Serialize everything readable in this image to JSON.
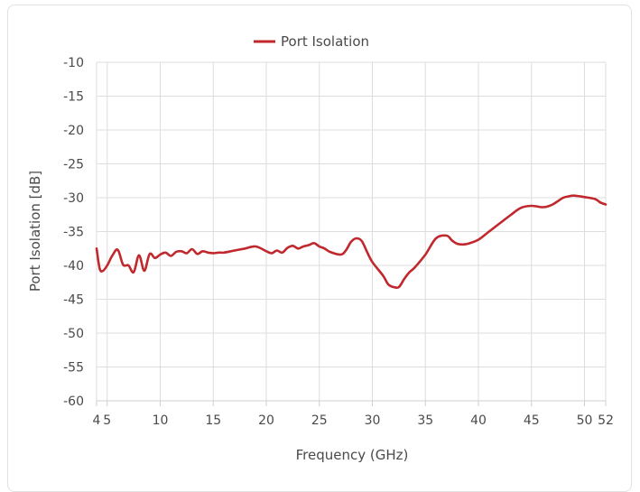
{
  "chart_data": {
    "type": "line",
    "title": "",
    "xlabel": "Frequency (GHz)",
    "ylabel": "Port Isolation [dB]",
    "xlim": [
      4,
      52
    ],
    "ylim": [
      -60,
      -10
    ],
    "grid": true,
    "legend_position": "top",
    "x_ticks": [
      4,
      5,
      10,
      15,
      20,
      25,
      30,
      35,
      40,
      45,
      50,
      52
    ],
    "x_tick_labels": [
      "4",
      "5",
      "10",
      "15",
      "20",
      "25",
      "30",
      "35",
      "40",
      "45",
      "50",
      "52"
    ],
    "y_ticks": [
      -10,
      -15,
      -20,
      -25,
      -30,
      -35,
      -40,
      -45,
      -50,
      -55,
      -60
    ],
    "y_tick_labels": [
      "-10",
      "-15",
      "-20",
      "-25",
      "-30",
      "-35",
      "-40",
      "-45",
      "-50",
      "-55",
      "-60"
    ],
    "series": [
      {
        "name": "Port Isolation",
        "color": "#c0282d",
        "x": [
          4.0,
          4.3,
          4.6,
          5.0,
          5.5,
          6.0,
          6.5,
          7.0,
          7.5,
          8.0,
          8.5,
          9.0,
          9.5,
          10.0,
          10.5,
          11.0,
          11.5,
          12.0,
          12.5,
          13.0,
          13.5,
          14.0,
          14.5,
          15.0,
          15.5,
          16.0,
          17.0,
          18.0,
          19.0,
          20.0,
          20.5,
          21.0,
          21.5,
          22.0,
          22.5,
          23.0,
          23.5,
          24.0,
          24.5,
          25.0,
          25.5,
          26.0,
          27.0,
          27.5,
          28.0,
          28.5,
          29.0,
          29.5,
          30.0,
          31.0,
          31.5,
          32.0,
          32.5,
          33.0,
          33.5,
          34.0,
          35.0,
          36.0,
          37.0,
          37.5,
          38.0,
          38.5,
          39.0,
          40.0,
          41.0,
          42.0,
          43.0,
          44.0,
          45.0,
          46.0,
          46.5,
          47.0,
          47.5,
          48.0,
          48.5,
          49.0,
          50.0,
          51.0,
          51.5,
          52.0
        ],
        "values": [
          -37.5,
          -40.5,
          -40.8,
          -40.0,
          -38.5,
          -37.7,
          -39.9,
          -40.0,
          -41.0,
          -38.5,
          -40.8,
          -38.3,
          -38.9,
          -38.4,
          -38.1,
          -38.6,
          -38.0,
          -37.9,
          -38.2,
          -37.6,
          -38.3,
          -37.9,
          -38.1,
          -38.2,
          -38.1,
          -38.1,
          -37.8,
          -37.5,
          -37.2,
          -37.9,
          -38.2,
          -37.8,
          -38.1,
          -37.4,
          -37.1,
          -37.5,
          -37.2,
          -37.0,
          -36.7,
          -37.2,
          -37.5,
          -38.0,
          -38.4,
          -37.8,
          -36.5,
          -36.0,
          -36.4,
          -38.0,
          -39.5,
          -41.5,
          -42.8,
          -43.2,
          -43.2,
          -42.0,
          -41.0,
          -40.3,
          -38.4,
          -36.0,
          -35.6,
          -36.3,
          -36.8,
          -36.9,
          -36.8,
          -36.2,
          -35.0,
          -33.8,
          -32.6,
          -31.5,
          -31.2,
          -31.4,
          -31.3,
          -31.0,
          -30.5,
          -30.0,
          -29.8,
          -29.7,
          -29.9,
          -30.2,
          -30.7,
          -31.0
        ]
      }
    ]
  }
}
